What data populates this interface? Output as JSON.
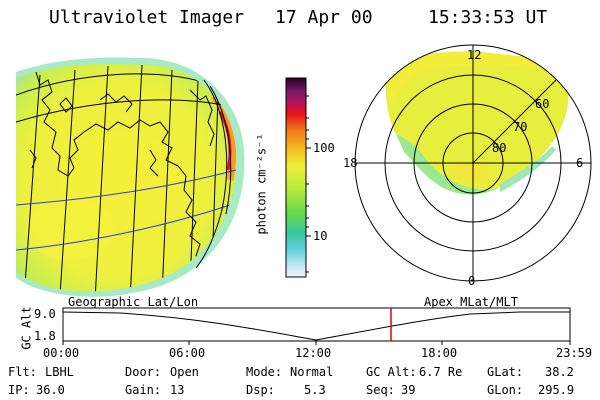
{
  "header": {
    "title": "Ultraviolet Imager",
    "date": "17 Apr 00",
    "time": "15:33:53 UT"
  },
  "colorbar": {
    "label": "photon cm⁻²s⁻¹",
    "ticks": [
      "100",
      "10"
    ],
    "scale": "log"
  },
  "polar": {
    "mlt_labels": [
      "12",
      "18",
      "6",
      "0"
    ],
    "lat_labels": [
      "60",
      "70",
      "80"
    ]
  },
  "timeline": {
    "left_title": "Geographic Lat/Lon",
    "right_title": "Apex MLat/MLT",
    "y_label": "GC Alt",
    "y_ticks": [
      "9.0",
      "1.8"
    ],
    "x_ticks": [
      "00:00",
      "06:00",
      "12:00",
      "18:00",
      "23:59"
    ],
    "current_time_marker": "15:33:53",
    "marker_color": "#e00000"
  },
  "status": {
    "row1": [
      {
        "label": "Flt:",
        "value": "LBHL"
      },
      {
        "label": "Door:",
        "value": "Open"
      },
      {
        "label": "Mode:",
        "value": "Normal"
      },
      {
        "label": "GC Alt:",
        "value": "6.7 Re"
      },
      {
        "label": "GLat:",
        "value": "38.2"
      }
    ],
    "row2": [
      {
        "label": "IP:",
        "value": "36.0"
      },
      {
        "label": "Gain:",
        "value": "13"
      },
      {
        "label": "Dsp:",
        "value": "5.3"
      },
      {
        "label": "Seq:",
        "value": "39"
      },
      {
        "label": "GLon:",
        "value": "295.9"
      }
    ]
  }
}
